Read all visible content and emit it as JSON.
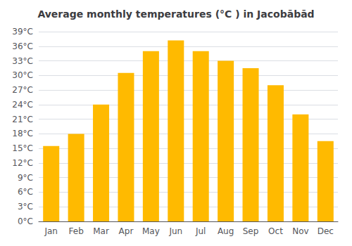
{
  "chart_data": {
    "type": "bar",
    "title": "Average monthly temperatures (°C ) in Jacobābād",
    "categories": [
      "Jan",
      "Feb",
      "Mar",
      "Apr",
      "May",
      "Jun",
      "Jul",
      "Aug",
      "Sep",
      "Oct",
      "Nov",
      "Dec"
    ],
    "values": [
      15.5,
      18.0,
      24.0,
      30.5,
      35.0,
      37.2,
      35.0,
      33.0,
      31.5,
      28.0,
      22.0,
      16.5
    ],
    "color": "#FFBA00",
    "ylim": [
      0,
      39
    ],
    "yticks": [
      {
        "value": 0,
        "label": "0°C"
      },
      {
        "value": 3,
        "label": "3°C"
      },
      {
        "value": 6,
        "label": "6°C"
      },
      {
        "value": 9,
        "label": "9°C"
      },
      {
        "value": 12,
        "label": "12°C"
      },
      {
        "value": 15,
        "label": "15°C"
      },
      {
        "value": 18,
        "label": "18°C"
      },
      {
        "value": 21,
        "label": "21°C"
      },
      {
        "value": 24,
        "label": "24°C"
      },
      {
        "value": 27,
        "label": "27°C"
      },
      {
        "value": 30,
        "label": "30°C"
      },
      {
        "value": 33,
        "label": "33°C"
      },
      {
        "value": 36,
        "label": "36°C"
      },
      {
        "value": 39,
        "label": "39°C"
      }
    ],
    "grid": true
  }
}
